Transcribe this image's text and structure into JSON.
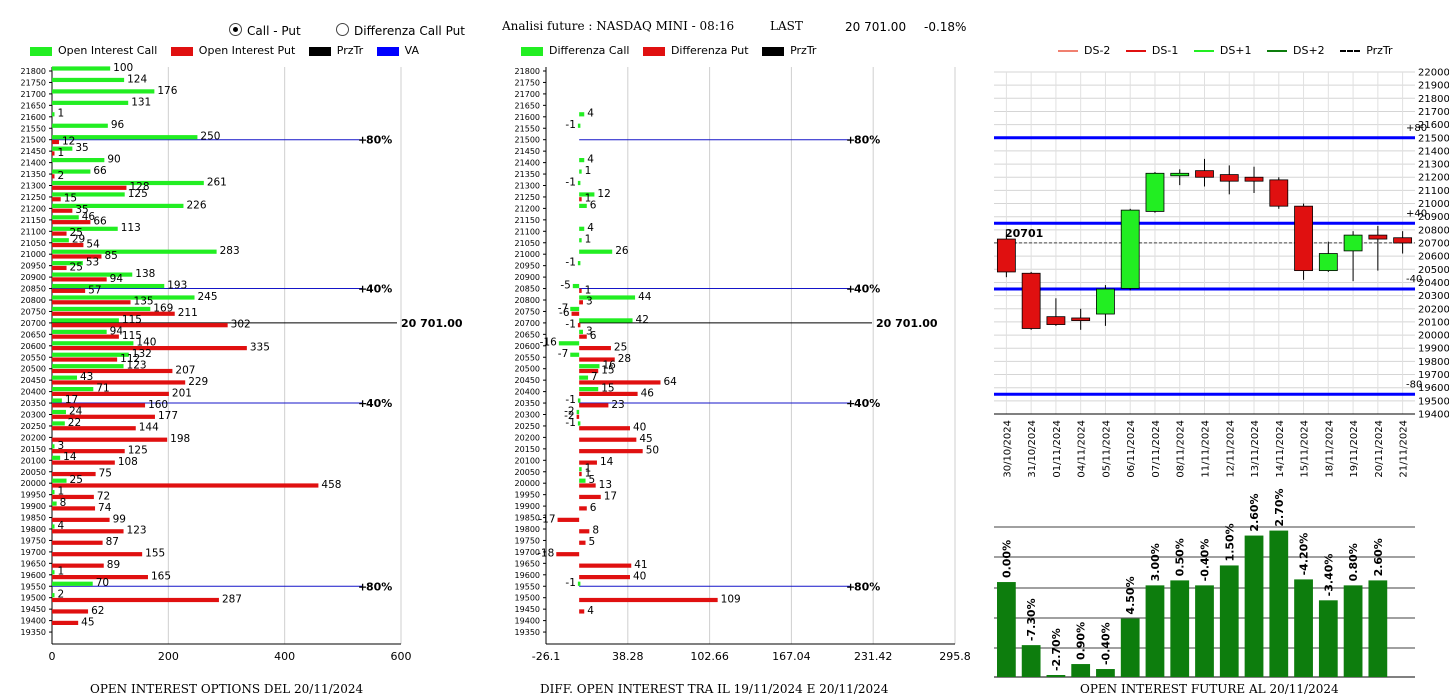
{
  "header": {
    "radio_call_put": "Call - Put",
    "radio_diff": "Differenza Call Put",
    "title": "Analisi future : NASDAQ MINI - 08:16",
    "last_label": "LAST",
    "last_value": "20 701.00",
    "change": "-0.18%"
  },
  "panel1": {
    "legend": [
      "Open Interest Call",
      "Open Interest Put",
      "PrzTr",
      "VA"
    ],
    "footer": "OPEN INTEREST OPTIONS DEL 20/11/2024"
  },
  "panel2": {
    "legend": [
      "Differenza Call",
      "Differenza Put",
      "PrzTr"
    ],
    "footer": "DIFF. OPEN INTEREST TRA IL 19/11/2024 E 20/11/2024"
  },
  "panel3": {
    "legend": [
      "DS-2",
      "DS-1",
      "DS+1",
      "DS+2",
      "PrzTr"
    ],
    "footer": "OPEN INTEREST FUTURE AL 20/11/2024",
    "price_tag": "20701"
  },
  "colors": {
    "call": "#22ee22",
    "put": "#e01010",
    "va": "#0000ff",
    "level": "#1515c8",
    "bar": "#0d7d0d"
  },
  "chart_data": [
    {
      "type": "bar",
      "orientation": "horizontal",
      "strikes": [
        21800,
        21750,
        21700,
        21650,
        21600,
        21550,
        21500,
        21450,
        21400,
        21350,
        21300,
        21250,
        21200,
        21150,
        21100,
        21050,
        21000,
        20950,
        20900,
        20850,
        20800,
        20750,
        20700,
        20650,
        20600,
        20550,
        20500,
        20450,
        20400,
        20350,
        20300,
        20250,
        20200,
        20150,
        20100,
        20050,
        20000,
        19950,
        19900,
        19850,
        19800,
        19750,
        19700,
        19650,
        19600,
        19550,
        19500,
        19450,
        19400,
        19350
      ],
      "series": [
        {
          "name": "Open Interest Call",
          "values": [
            100,
            124,
            176,
            131,
            1,
            96,
            250,
            35,
            90,
            66,
            261,
            125,
            226,
            46,
            113,
            29,
            283,
            53,
            138,
            193,
            245,
            169,
            115,
            94,
            140,
            132,
            123,
            43,
            71,
            17,
            24,
            22,
            null,
            3,
            14,
            null,
            25,
            1,
            8,
            null,
            4,
            null,
            null,
            null,
            1,
            70,
            2,
            null,
            null,
            null
          ]
        },
        {
          "name": "Open Interest Put",
          "values": [
            null,
            null,
            null,
            null,
            null,
            null,
            12,
            1,
            null,
            2,
            128,
            15,
            35,
            66,
            25,
            54,
            85,
            25,
            94,
            57,
            135,
            211,
            302,
            115,
            335,
            112,
            207,
            229,
            201,
            160,
            177,
            144,
            198,
            125,
            108,
            75,
            458,
            72,
            74,
            99,
            123,
            87,
            155,
            89,
            165,
            null,
            287,
            62,
            45,
            null
          ]
        }
      ],
      "levels": [
        {
          "label": "80%",
          "strike": 21500
        },
        {
          "label": "40%",
          "strike": 20850
        },
        {
          "label": "20 701.00",
          "strike": 20700
        },
        {
          "label": "40%",
          "strike": 20350
        },
        {
          "label": "80%",
          "strike": 19550
        }
      ],
      "x_ticks": [
        0,
        200,
        400,
        600
      ],
      "xlim": [
        0,
        600
      ]
    },
    {
      "type": "bar",
      "orientation": "horizontal",
      "strikes": [
        21800,
        21750,
        21700,
        21650,
        21600,
        21550,
        21500,
        21450,
        21400,
        21350,
        21300,
        21250,
        21200,
        21150,
        21100,
        21050,
        21000,
        20950,
        20900,
        20850,
        20800,
        20750,
        20700,
        20650,
        20600,
        20550,
        20500,
        20450,
        20400,
        20350,
        20300,
        20250,
        20200,
        20150,
        20100,
        20050,
        20000,
        19950,
        19900,
        19850,
        19800,
        19750,
        19700,
        19650,
        19600,
        19550,
        19500,
        19450,
        19400,
        19350
      ],
      "series": [
        {
          "name": "Differenza Call",
          "values": [
            null,
            null,
            null,
            null,
            4,
            -1,
            null,
            null,
            4,
            1,
            -1,
            12,
            6,
            null,
            4,
            1,
            26,
            -1,
            null,
            -5,
            44,
            -7,
            42,
            3,
            -16,
            -7,
            16,
            7,
            15,
            -1,
            -2,
            -1,
            null,
            null,
            null,
            1,
            5,
            null,
            null,
            null,
            null,
            null,
            null,
            null,
            null,
            -1,
            null,
            null,
            null,
            null
          ]
        },
        {
          "name": "Differenza Put",
          "values": [
            null,
            null,
            null,
            null,
            null,
            null,
            null,
            null,
            null,
            null,
            null,
            1,
            null,
            null,
            null,
            null,
            null,
            null,
            null,
            1,
            3,
            -6,
            -1,
            6,
            25,
            28,
            15,
            64,
            46,
            23,
            -2,
            40,
            45,
            50,
            14,
            1,
            13,
            17,
            6,
            -17,
            8,
            5,
            -18,
            41,
            40,
            null,
            109,
            4,
            null,
            null
          ]
        }
      ],
      "levels": [
        {
          "label": "80%",
          "strike": 21500
        },
        {
          "label": "40%",
          "strike": 20850
        },
        {
          "label": "20 701.00",
          "strike": 20700
        },
        {
          "label": "40%",
          "strike": 20350
        },
        {
          "label": "80%",
          "strike": 19550
        }
      ],
      "x_ticks": [
        -26.1,
        38.28,
        102.66,
        167.04,
        231.42,
        295.8
      ],
      "xlim": [
        -26.1,
        295.8
      ]
    },
    {
      "type": "candlestick",
      "dates": [
        "30/10/2024",
        "31/10/2024",
        "01/11/2024",
        "04/11/2024",
        "05/11/2024",
        "06/11/2024",
        "07/11/2024",
        "08/11/2024",
        "11/11/2024",
        "12/11/2024",
        "13/11/2024",
        "14/11/2024",
        "15/11/2024",
        "18/11/2024",
        "19/11/2024",
        "20/11/2024",
        "21/11/2024"
      ],
      "open": [
        20730,
        20470,
        20140,
        20130,
        20160,
        20355,
        20940,
        21230,
        21250,
        21220,
        21200,
        21180,
        20980,
        20490,
        20640,
        20760,
        20740
      ],
      "high": [
        20790,
        20480,
        20280,
        20200,
        20380,
        20960,
        21240,
        21260,
        21340,
        21290,
        21280,
        21200,
        21000,
        20710,
        20790,
        20830,
        20790
      ],
      "low": [
        20440,
        20040,
        20070,
        20040,
        20070,
        20340,
        20930,
        21140,
        21130,
        21070,
        21080,
        20960,
        20420,
        20480,
        20410,
        20490,
        20620
      ],
      "close": [
        20480,
        20050,
        20080,
        20110,
        20350,
        20950,
        21230,
        21230,
        21200,
        21170,
        21170,
        20980,
        20490,
        20620,
        20760,
        20730,
        20700
      ],
      "y_ticks": [
        22000,
        21900,
        21800,
        21700,
        21600,
        21500,
        21400,
        21300,
        21200,
        21100,
        21000,
        20900,
        20800,
        20700,
        20600,
        20500,
        20400,
        20300,
        20200,
        20100,
        20000,
        19900,
        19800,
        19700,
        19600,
        19500,
        19400
      ],
      "ylim": [
        19400,
        22000
      ],
      "levels": [
        {
          "label": "+80",
          "value": 21500
        },
        {
          "label": "+40",
          "value": 20850
        },
        {
          "label": "-40",
          "value": 20350
        },
        {
          "label": "-80",
          "value": 19550
        }
      ],
      "last": 20701
    },
    {
      "type": "bar",
      "categories": [
        "30/10/2024",
        "31/10/2024",
        "01/11/2024",
        "04/11/2024",
        "05/11/2024",
        "06/11/2024",
        "07/11/2024",
        "08/11/2024",
        "11/11/2024",
        "12/11/2024",
        "13/11/2024",
        "14/11/2024",
        "15/11/2024",
        "18/11/2024",
        "19/11/2024",
        "20/11/2024",
        "21/11/2024"
      ],
      "labels": [
        "0.00%",
        "-7.30%",
        "-2.70%",
        "0.90%",
        "-0.40%",
        "4.50%",
        "3.00%",
        "0.50%",
        "-0.40%",
        "1.50%",
        "2.60%",
        "2.70%",
        "-4.20%",
        "-3.40%",
        "0.80%",
        "2.60%",
        ""
      ],
      "values": [
        null,
        null,
        null,
        null,
        null,
        null,
        null,
        null,
        null,
        null,
        null,
        null,
        null,
        null,
        null,
        null,
        null
      ],
      "bar_fraction": [
        0.572,
        0.192,
        0.012,
        0.078,
        0.048,
        0.352,
        0.552,
        0.582,
        0.552,
        0.672,
        0.852,
        0.882,
        0.588,
        0.462,
        0.552,
        0.582,
        0
      ]
    }
  ]
}
